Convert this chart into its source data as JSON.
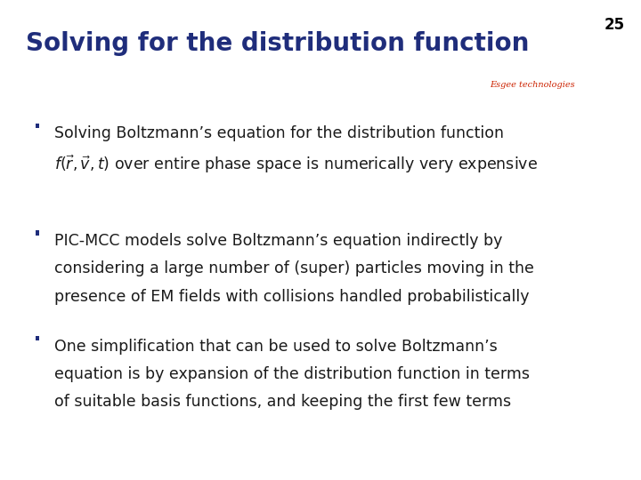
{
  "slide_number": "25",
  "title": "Solving for the distribution function",
  "title_color": "#1F2D7B",
  "title_fontsize": 20,
  "bg_color": "#FFFFFF",
  "slide_number_color": "#000000",
  "slide_number_fontsize": 12,
  "bar_color_dark": "#1F2D7B",
  "bar_color_red": "#CC2200",
  "logo_text": "Esgee technologies",
  "logo_text_color": "#CC2200",
  "bullet_color": "#1F2D7B",
  "bullets": [
    {
      "text_lines": [
        "Solving Boltzmann’s equation for the distribution function",
        "$f(\\vec{r}, \\vec{v}, t)$ over entire phase space is numerically very expensive"
      ]
    },
    {
      "text_lines": [
        "PIC-MCC models solve Boltzmann’s equation indirectly by",
        "considering a large number of (super) particles moving in the",
        "presence of EM fields with collisions handled probabilistically"
      ]
    },
    {
      "text_lines": [
        "One simplification that can be used to solve Boltzmann’s",
        "equation is by expansion of the distribution function in terms",
        "of suitable basis functions, and keeping the first few terms"
      ]
    }
  ],
  "text_color": "#1a1a1a",
  "text_fontsize": 12.5,
  "line_color": "#1F2D7B"
}
